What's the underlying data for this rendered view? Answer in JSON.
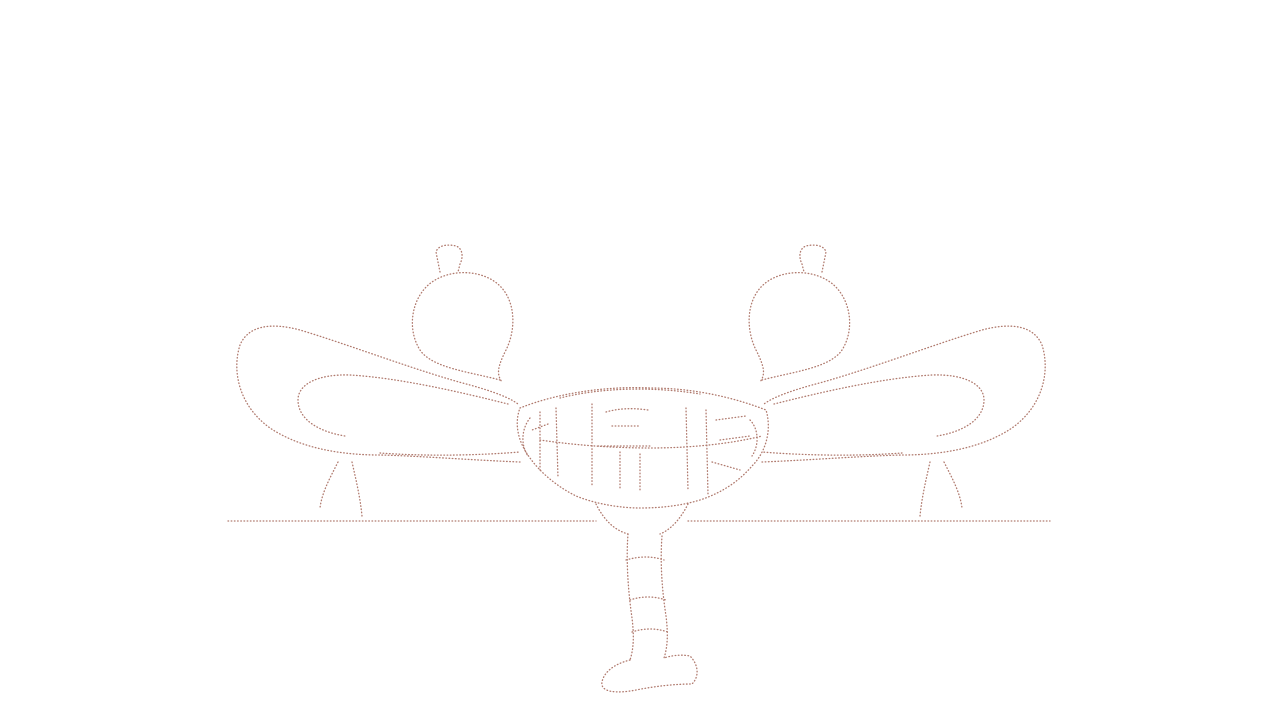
{
  "artwork": {
    "subject": "symmetric-dotted-line-drawing",
    "style": "stippled-outline",
    "colors": {
      "background": "#ffffff",
      "stroke": "#b07a6e"
    }
  }
}
